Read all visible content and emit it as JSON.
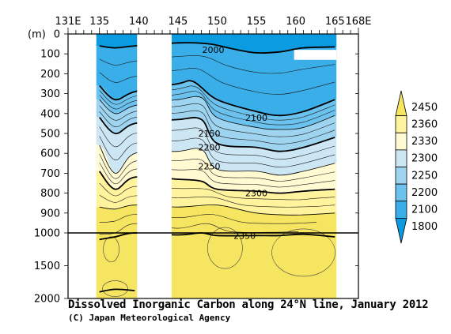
{
  "chart_data": {
    "type": "heatmap",
    "title": "Dissolved Inorganic Carbon along 24°N line, January 2012",
    "credit": "(C) Japan Meteorological Agency",
    "x_axis": {
      "ticks": [
        "131E",
        "135",
        "140",
        "145",
        "150",
        "155",
        "160",
        "165",
        "168E"
      ],
      "tick_values": [
        131,
        135,
        140,
        145,
        150,
        155,
        160,
        165,
        168
      ],
      "range": [
        131,
        168
      ]
    },
    "y_axis": {
      "unit_label": "(m)",
      "ticks": [
        "0",
        "100",
        "200",
        "300",
        "400",
        "500",
        "600",
        "700",
        "800",
        "900",
        "1000",
        "1500",
        "2000"
      ],
      "tick_values": [
        0,
        100,
        200,
        300,
        400,
        500,
        600,
        700,
        800,
        900,
        1000,
        1500,
        2000
      ],
      "scale": "piecewise linear: 0-1000 m upper panel, 1000-2000 m compressed lower panel",
      "inverted": true
    },
    "colorbar": {
      "levels": [
        "1800",
        "2100",
        "2200",
        "2250",
        "2300",
        "2330",
        "2360",
        "2450"
      ],
      "colors": [
        "#0a9be0",
        "#3aaee8",
        "#6cc2ee",
        "#9fd4f1",
        "#cde6f3",
        "#fffad2",
        "#fff39e",
        "#f5e560"
      ]
    },
    "no_data_bands": [
      {
        "from": 131,
        "to": 134.6
      },
      {
        "from": 139.8,
        "to": 144.2
      },
      {
        "from": 165.2,
        "to": 168
      }
    ],
    "contour_labels": [
      {
        "text": "2000",
        "lon": 149.5,
        "depth": 80
      },
      {
        "text": "2100",
        "lon": 155,
        "depth": 420
      },
      {
        "text": "2150",
        "lon": 149,
        "depth": 500
      },
      {
        "text": "2200",
        "lon": 149,
        "depth": 570
      },
      {
        "text": "2250",
        "lon": 149,
        "depth": 665
      },
      {
        "text": "2300",
        "lon": 155,
        "depth": 800
      },
      {
        "text": "2350",
        "lon": 153.5,
        "depth": 1040
      }
    ],
    "contours": [
      {
        "level": 2000,
        "bold": true,
        "points": [
          [
            135,
            60
          ],
          [
            137,
            70
          ],
          [
            139.5,
            60
          ],
          [
            145,
            45
          ],
          [
            149,
            50
          ],
          [
            152,
            75
          ],
          [
            155,
            95
          ],
          [
            158,
            90
          ],
          [
            161,
            70
          ],
          [
            165,
            65
          ]
        ]
      },
      {
        "level": 2100,
        "bold": true,
        "points": [
          [
            135,
            260
          ],
          [
            137,
            330
          ],
          [
            139.5,
            290
          ],
          [
            145,
            250
          ],
          [
            147,
            240
          ],
          [
            150,
            330
          ],
          [
            155,
            390
          ],
          [
            158,
            410
          ],
          [
            161,
            390
          ],
          [
            165,
            330
          ]
        ]
      },
      {
        "level": 2150,
        "bold": false,
        "points": [
          [
            135,
            330
          ],
          [
            137,
            400
          ],
          [
            139.5,
            360
          ],
          [
            145,
            330
          ],
          [
            148,
            320
          ],
          [
            150,
            420
          ],
          [
            155,
            470
          ],
          [
            158,
            480
          ],
          [
            161,
            470
          ],
          [
            165,
            410
          ]
        ]
      },
      {
        "level": 2200,
        "bold": true,
        "points": [
          [
            135,
            420
          ],
          [
            137,
            500
          ],
          [
            139.5,
            450
          ],
          [
            145,
            430
          ],
          [
            148,
            430
          ],
          [
            150,
            550
          ],
          [
            155,
            570
          ],
          [
            158,
            590
          ],
          [
            161,
            570
          ],
          [
            165,
            520
          ]
        ]
      },
      {
        "level": 2250,
        "bold": false,
        "points": [
          [
            135,
            560
          ],
          [
            137,
            700
          ],
          [
            139.5,
            600
          ],
          [
            145,
            590
          ],
          [
            148,
            580
          ],
          [
            150,
            680
          ],
          [
            155,
            690
          ],
          [
            158,
            710
          ],
          [
            161,
            690
          ],
          [
            165,
            650
          ]
        ]
      },
      {
        "level": 2300,
        "bold": true,
        "points": [
          [
            135,
            690
          ],
          [
            137,
            780
          ],
          [
            139.5,
            720
          ],
          [
            145,
            730
          ],
          [
            148,
            740
          ],
          [
            150,
            780
          ],
          [
            155,
            790
          ],
          [
            158,
            800
          ],
          [
            161,
            790
          ],
          [
            165,
            780
          ]
        ]
      },
      {
        "level": 2330,
        "bold": false,
        "points": [
          [
            135,
            870
          ],
          [
            137,
            880
          ],
          [
            139.5,
            860
          ],
          [
            145,
            870
          ],
          [
            150,
            860
          ],
          [
            155,
            900
          ],
          [
            160,
            910
          ],
          [
            165,
            900
          ]
        ]
      },
      {
        "level": 2350,
        "bold": true,
        "points": [
          [
            135,
            1100
          ],
          [
            137,
            1060
          ],
          [
            139.5,
            1000
          ],
          [
            145,
            1030
          ],
          [
            148,
            1000
          ],
          [
            150,
            1040
          ],
          [
            155,
            1040
          ],
          [
            158,
            1040
          ],
          [
            161,
            1020
          ],
          [
            165,
            1060
          ]
        ]
      },
      {
        "level": 2350,
        "bold": true,
        "points": [
          [
            135,
            1900
          ],
          [
            137,
            1860
          ],
          [
            139.5,
            1880
          ]
        ]
      }
    ],
    "blank_patch": {
      "lon_from": 159.8,
      "lon_to": 165.2,
      "depth_from": 80,
      "depth_to": 130
    },
    "grid": false,
    "legend_placement": "right"
  }
}
